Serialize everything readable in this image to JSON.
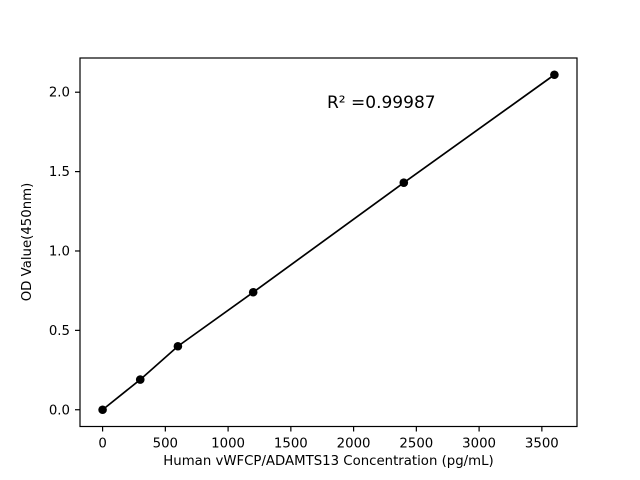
{
  "figure": {
    "background": "#ffffff",
    "foreground": "#000000"
  },
  "chart_data": {
    "type": "line",
    "title": "",
    "xlabel": "Human vWFCP/ADAMTS13 Concentration (pg/mL)",
    "ylabel": "OD Value(450nm)",
    "annotation": "R² =0.99987",
    "r_squared": 0.99987,
    "series": [
      {
        "name": "standard-curve",
        "x": [
          0,
          300,
          600,
          1200,
          2400,
          3600
        ],
        "y": [
          0.0,
          0.19,
          0.4,
          0.74,
          1.43,
          2.11
        ],
        "marker": "filled-circle",
        "line_color": "#000000",
        "marker_color": "#000000"
      }
    ],
    "xlim": [
      -180,
      3780
    ],
    "ylim": [
      -0.1055,
      2.2155
    ],
    "xticks": [
      0,
      500,
      1000,
      1500,
      2000,
      2500,
      3000,
      3500
    ],
    "xtick_labels": [
      "0",
      "500",
      "1000",
      "1500",
      "2000",
      "2500",
      "3000",
      "3500"
    ],
    "yticks": [
      0.0,
      0.5,
      1.0,
      1.5,
      2.0
    ],
    "ytick_labels": [
      "0.0",
      "0.5",
      "1.0",
      "1.5",
      "2.0"
    ],
    "grid": false,
    "legend": "none"
  }
}
